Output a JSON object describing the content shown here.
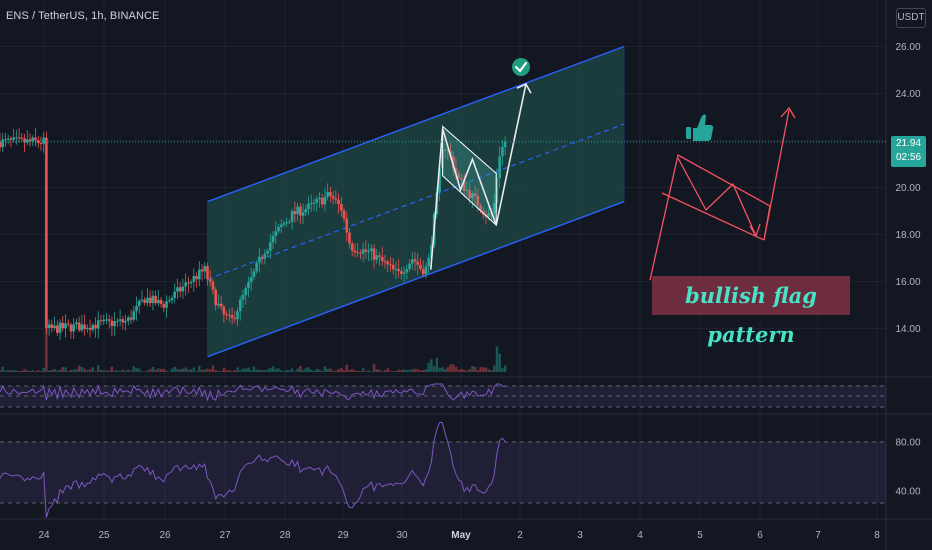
{
  "header": {
    "symbol_title": "ENS / TetherUS, 1h, BINANCE",
    "currency": "USDT"
  },
  "last_price": {
    "value": "21.94",
    "countdown": "02:56"
  },
  "annotation": {
    "text": "bullish flag pattern"
  },
  "colors": {
    "background": "#131722",
    "up": "#26a69a",
    "down": "#ef5350",
    "channel_line": "#2962ff",
    "channel_fill": "#1f4a45",
    "indicator": "#7e57c2",
    "label_bg": "#6d2d3f",
    "label_text": "#48e2c7",
    "sketch": "#f7525f"
  },
  "icons": {
    "target": "check-circle-icon",
    "thumb": "thumbs-up-icon"
  },
  "chart_data": [
    {
      "type": "candlestick",
      "title": "ENS / TetherUS, 1h, BINANCE",
      "y_axis_ticks": [
        "26.00",
        "24.00",
        "22.00",
        "20.00",
        "18.00",
        "16.00",
        "14.00"
      ],
      "ylim": [
        12.4,
        26.8
      ],
      "x_axis_ticks": [
        "24",
        "25",
        "26",
        "27",
        "28",
        "29",
        "30",
        "May",
        "2",
        "3",
        "4",
        "5",
        "6",
        "7",
        "8"
      ],
      "last_price": 21.94,
      "approx_daily_close": [
        {
          "x": "24",
          "close": 14.1
        },
        {
          "x": "25",
          "close": 14.9
        },
        {
          "x": "26",
          "close": 16.5
        },
        {
          "x": "27",
          "close": 14.3
        },
        {
          "x": "28",
          "close": 19.2
        },
        {
          "x": "29",
          "close": 19.6
        },
        {
          "x": "30",
          "close": 16.6
        },
        {
          "x": "May",
          "close": 19.6
        },
        {
          "x": "May-1 latest",
          "close": 21.94
        }
      ],
      "channel": {
        "upper": [
          {
            "x": "26.75",
            "y": 19.4
          },
          {
            "x": "3.75",
            "y": 26.0
          }
        ],
        "lower": [
          {
            "x": "26.75",
            "y": 12.8
          },
          {
            "x": "3.75",
            "y": 19.4
          }
        ]
      },
      "flag": {
        "pole_from": 16.5,
        "pole_to": 22.6,
        "flag_bottom": 18.4
      },
      "target_arrow": [
        {
          "x": "May",
          "y": 18.4
        },
        {
          "x": "2.1",
          "y": 24.4
        }
      ],
      "grid": true,
      "legend": "none"
    },
    {
      "type": "line",
      "name": "oscillator-1",
      "grid": false
    },
    {
      "type": "line",
      "name": "oscillator-2",
      "y_axis_ticks": [
        "80.00",
        "40.00"
      ],
      "ylim": [
        20,
        100
      ],
      "upper_band": 80,
      "lower_band": 30
    }
  ]
}
